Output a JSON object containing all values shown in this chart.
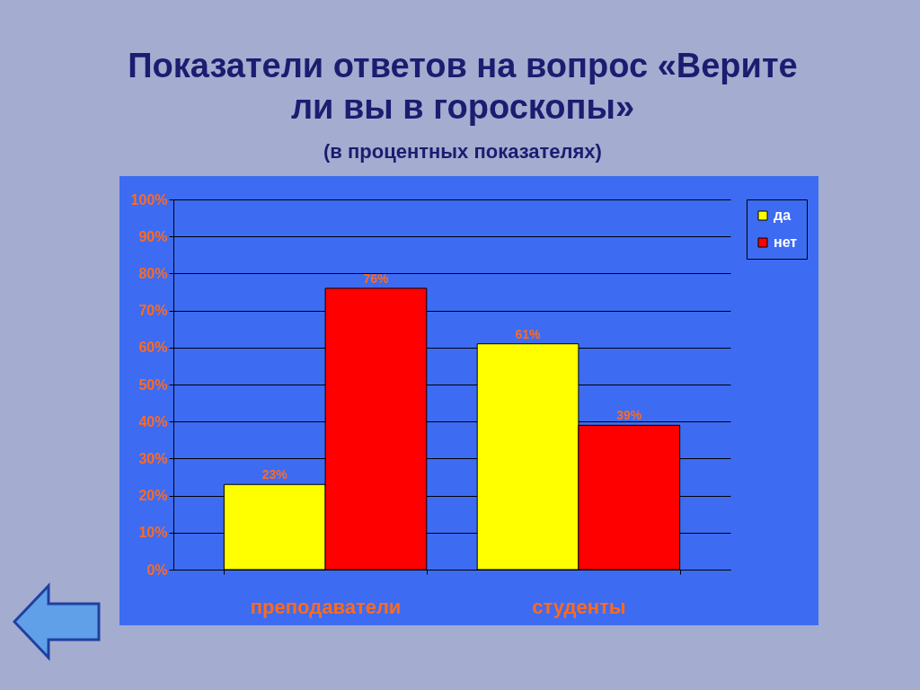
{
  "chart_data": {
    "type": "bar",
    "title": "Показатели ответов на вопрос «Верите ли вы в гороскопы»",
    "subtitle": "(в процентных показателях)",
    "categories": [
      "преподаватели",
      "студенты"
    ],
    "series": [
      {
        "name": "да",
        "color": "#ffff00",
        "values": [
          23,
          61
        ],
        "value_labels": [
          "23%",
          "61%"
        ]
      },
      {
        "name": "нет",
        "color": "#ff0000",
        "values": [
          76,
          39
        ],
        "value_labels": [
          "76%",
          "39%"
        ]
      }
    ],
    "ylim": [
      0,
      100
    ],
    "yticks": [
      {
        "value": 0,
        "label": "0%"
      },
      {
        "value": 10,
        "label": "10%"
      },
      {
        "value": 20,
        "label": "20%"
      },
      {
        "value": 30,
        "label": "30%"
      },
      {
        "value": 40,
        "label": "40%"
      },
      {
        "value": 50,
        "label": "50%"
      },
      {
        "value": 60,
        "label": "60%"
      },
      {
        "value": 70,
        "label": "70%"
      },
      {
        "value": 80,
        "label": "80%"
      },
      {
        "value": 90,
        "label": "90%"
      },
      {
        "value": 100,
        "label": "100%"
      }
    ],
    "grid": "y",
    "legend": "right"
  }
}
